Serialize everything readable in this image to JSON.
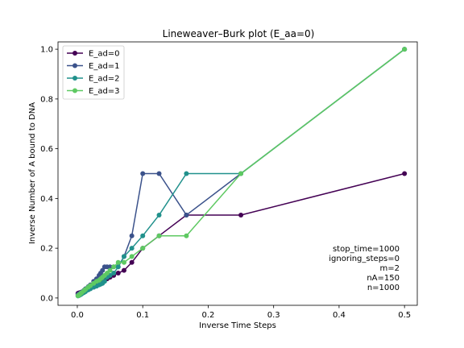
{
  "chart_data": {
    "type": "line",
    "title": "Lineweaver–Burk plot (E_aa=0)",
    "xlabel": "Inverse Time Steps",
    "ylabel": "Inverse Number of A bound to DNA",
    "xlim": [
      -0.0295,
      0.5195
    ],
    "ylim": [
      -0.0295,
      1.0295
    ],
    "xticks": [
      0.0,
      0.1,
      0.2,
      0.3,
      0.4,
      0.5
    ],
    "xtick_labels": [
      "0.0",
      "0.1",
      "0.2",
      "0.3",
      "0.4",
      "0.5"
    ],
    "yticks": [
      0.0,
      0.2,
      0.4,
      0.6,
      0.8,
      1.0
    ],
    "ytick_labels": [
      "0.0",
      "0.2",
      "0.4",
      "0.6",
      "0.8",
      "1.0"
    ],
    "grid": false,
    "legend_position": "upper-left",
    "annotation": [
      "stop_time=1000",
      "ignoring_steps=0",
      "m=2",
      "nA=150",
      "n=1000"
    ],
    "series": [
      {
        "name": "E_ad=0",
        "color": "#440154",
        "x": [
          0.5,
          0.25,
          0.1667,
          0.125,
          0.1,
          0.0833,
          0.0714,
          0.0625,
          0.0556,
          0.05,
          0.0455,
          0.0417,
          0.0385,
          0.0357,
          0.0333,
          0.0294,
          0.025,
          0.02,
          0.0167,
          0.0125,
          0.01,
          0.0067,
          0.005,
          0.0033,
          0.0025,
          0.002,
          0.001
        ],
        "y": [
          0.5,
          0.3333,
          0.3333,
          0.25,
          0.2,
          0.1429,
          0.1111,
          0.1,
          0.0909,
          0.0833,
          0.0769,
          0.0714,
          0.0667,
          0.0625,
          0.0588,
          0.05,
          0.0435,
          0.0385,
          0.0333,
          0.0303,
          0.027,
          0.0238,
          0.0222,
          0.0208,
          0.02,
          0.0196,
          0.0185
        ]
      },
      {
        "name": "E_ad=1",
        "color": "#3b528b",
        "x": [
          0.5,
          0.25,
          0.1667,
          0.125,
          0.1,
          0.0833,
          0.0714,
          0.0625,
          0.0556,
          0.05,
          0.0455,
          0.0417,
          0.0385,
          0.0357,
          0.0333,
          0.0294,
          0.025,
          0.02,
          0.0167,
          0.0125,
          0.01,
          0.0067,
          0.005,
          0.0033,
          0.0025,
          0.002,
          0.001
        ],
        "y": [
          1.0,
          0.5,
          0.3333,
          0.5,
          0.5,
          0.25,
          0.1667,
          0.125,
          0.125,
          0.125,
          0.125,
          0.125,
          0.1111,
          0.1,
          0.0909,
          0.0769,
          0.0667,
          0.0526,
          0.0455,
          0.037,
          0.0303,
          0.0238,
          0.0208,
          0.0175,
          0.0159,
          0.0154,
          0.0143
        ]
      },
      {
        "name": "E_ad=2",
        "color": "#21918c",
        "x": [
          0.5,
          0.25,
          0.1667,
          0.125,
          0.1,
          0.0833,
          0.0714,
          0.0625,
          0.0556,
          0.05,
          0.0455,
          0.0417,
          0.0385,
          0.0357,
          0.0333,
          0.0294,
          0.025,
          0.02,
          0.0167,
          0.0125,
          0.01,
          0.0067,
          0.005,
          0.0033,
          0.0025,
          0.002,
          0.001
        ],
        "y": [
          1.0,
          0.5,
          0.5,
          0.3333,
          0.25,
          0.2,
          0.1667,
          0.125,
          0.1,
          0.0909,
          0.0833,
          0.0667,
          0.0588,
          0.0556,
          0.0526,
          0.0476,
          0.0435,
          0.037,
          0.0323,
          0.0256,
          0.0213,
          0.0161,
          0.0133,
          0.0111,
          0.01,
          0.0093,
          0.0083
        ]
      },
      {
        "name": "E_ad=3",
        "color": "#5ec962",
        "x": [
          0.5,
          0.25,
          0.1667,
          0.125,
          0.1,
          0.0833,
          0.0714,
          0.0625,
          0.0556,
          0.05,
          0.0455,
          0.0417,
          0.0385,
          0.0357,
          0.0333,
          0.0294,
          0.025,
          0.02,
          0.0167,
          0.0125,
          0.01,
          0.0067,
          0.005,
          0.0033,
          0.0025,
          0.002,
          0.001
        ],
        "y": [
          1.0,
          0.5,
          0.25,
          0.25,
          0.2,
          0.1667,
          0.1429,
          0.1429,
          0.125,
          0.1111,
          0.1,
          0.0909,
          0.0833,
          0.0769,
          0.0714,
          0.0667,
          0.0588,
          0.05,
          0.0435,
          0.0345,
          0.0286,
          0.0213,
          0.0175,
          0.0137,
          0.0118,
          0.0105,
          0.0091
        ]
      }
    ]
  }
}
